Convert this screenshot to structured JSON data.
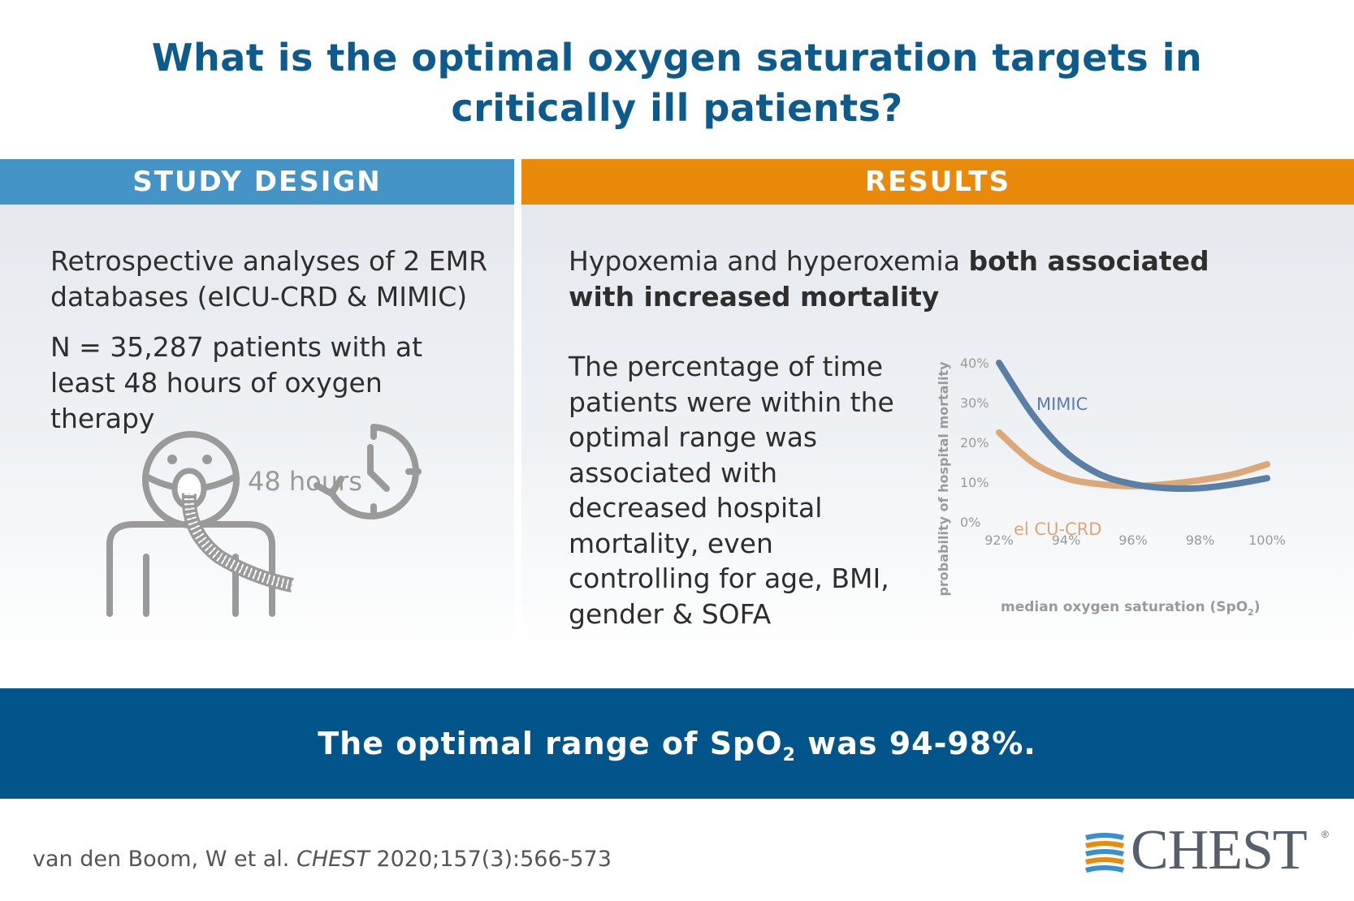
{
  "title": {
    "line1": "What is the optimal oxygen saturation targets in",
    "line2": "critically ill patients?"
  },
  "study_design": {
    "header": "STUDY DESIGN",
    "p1": "Retrospective analyses of 2 EMR databases (eICU-CRD & MIMIC)",
    "p2": "N = 35,287 patients with at least 48 hours of oxygen therapy",
    "clock_label": "48 hours"
  },
  "results": {
    "header": "RESULTS",
    "p1_normal": "Hypoxemia and hyperoxemia ",
    "p1_bold": "both associated with increased mortality",
    "p2": "The percentage of time patients were within the optimal range was associated with decreased hospital mortality, even controlling for age, BMI, gender & SOFA"
  },
  "chart_data": {
    "type": "line",
    "title": "",
    "xlabel": "median oxygen saturation (SpO",
    "xlabel_sub": "2",
    "xlabel_end": ")",
    "ylabel": "probability of hospital mortality",
    "x": [
      92,
      93,
      94,
      95,
      96,
      97,
      98,
      99,
      100
    ],
    "x_tick_labels": [
      "92%",
      "94%",
      "96%",
      "98%",
      "100%"
    ],
    "x_ticks": [
      92,
      94,
      96,
      98,
      100
    ],
    "y_tick_labels": [
      "0%",
      "10%",
      "20%",
      "30%",
      "40%"
    ],
    "y_ticks": [
      0,
      10,
      20,
      30,
      40
    ],
    "xlim": [
      92,
      100
    ],
    "ylim": [
      0,
      40
    ],
    "series": [
      {
        "name": "MIMIC",
        "color": "#5a7fa6",
        "values": [
          40,
          27,
          17.5,
          12,
          9.5,
          8.5,
          8.5,
          9.5,
          11
        ]
      },
      {
        "name": "el CU-CRD",
        "color": "#dda878",
        "values": [
          22.5,
          15,
          11,
          9.5,
          9,
          9.5,
          10.5,
          12,
          14.5
        ]
      }
    ]
  },
  "conclusion": {
    "before": "The optimal range of SpO",
    "sub": "2",
    "after": " was 94-98%."
  },
  "citation": {
    "authors": "van den Boom, W et al. ",
    "journal": "CHEST",
    "ref": " 2020;157(3):566-573"
  },
  "logo": {
    "text": "CHEST",
    "reg": "®",
    "colors": {
      "blue": "#3a8fd0",
      "orange": "#e98a0b",
      "grey": "#57606a"
    }
  }
}
